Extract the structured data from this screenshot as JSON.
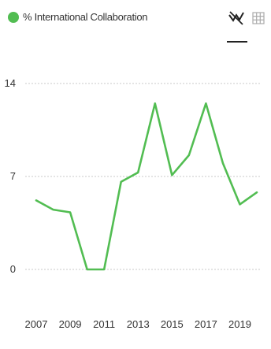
{
  "legend": {
    "label": "% International Collaboration",
    "color": "#52bd52"
  },
  "toolbar": {
    "chart_view_icon": "line-chart-icon",
    "table_view_icon": "table-grid-icon"
  },
  "chart_data": {
    "type": "line",
    "title": "",
    "xlabel": "",
    "ylabel": "",
    "x": [
      2007,
      2008,
      2009,
      2010,
      2011,
      2012,
      2013,
      2014,
      2015,
      2016,
      2017,
      2018,
      2019,
      2020
    ],
    "x_tick_labels": [
      "2007",
      "2009",
      "2011",
      "2013",
      "2015",
      "2017",
      "2019"
    ],
    "y_tick_labels": [
      "0",
      "7",
      "14"
    ],
    "ylim": [
      0,
      14
    ],
    "grid": true,
    "legend_position": "top-left",
    "series": [
      {
        "name": "% International Collaboration",
        "color": "#52bd52",
        "values": [
          5.2,
          4.5,
          4.3,
          0,
          0,
          6.6,
          7.3,
          12.5,
          7.1,
          8.6,
          12.5,
          8.0,
          4.9,
          5.8
        ]
      }
    ]
  }
}
